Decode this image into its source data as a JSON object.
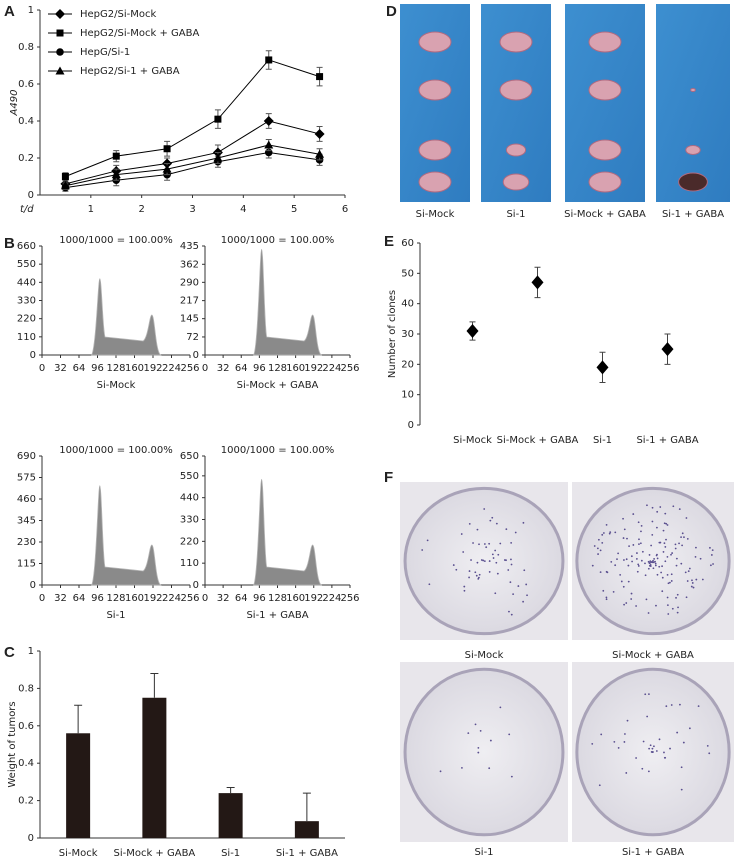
{
  "chart_data": [
    {
      "type": "line",
      "panel": "A",
      "ylabel": "A490",
      "xlabel": "t/d",
      "x": [
        0.5,
        1.5,
        2.5,
        3.5,
        4.5,
        5.5
      ],
      "xlim": [
        0,
        6
      ],
      "xticks": [
        1,
        2,
        3,
        4,
        5,
        6
      ],
      "ylim": [
        0,
        1
      ],
      "yticks": [
        0,
        0.2,
        0.4,
        0.6,
        0.8,
        1
      ],
      "series": [
        {
          "name": "HepG2/Si-Mock",
          "marker": "diamond",
          "color": "#000000",
          "values": [
            0.06,
            0.13,
            0.17,
            0.23,
            0.4,
            0.33
          ],
          "errors": [
            0.02,
            0.03,
            0.03,
            0.04,
            0.04,
            0.04
          ]
        },
        {
          "name": "HepG2/Si-Mock + GABA",
          "marker": "square",
          "color": "#000000",
          "values": [
            0.1,
            0.21,
            0.25,
            0.41,
            0.73,
            0.64
          ],
          "errors": [
            0.02,
            0.03,
            0.04,
            0.05,
            0.05,
            0.05
          ]
        },
        {
          "name": "HepG/Si-1",
          "marker": "circle",
          "color": "#000000",
          "values": [
            0.04,
            0.08,
            0.11,
            0.18,
            0.23,
            0.19
          ],
          "errors": [
            0.02,
            0.03,
            0.03,
            0.03,
            0.03,
            0.03
          ]
        },
        {
          "name": "HepG2/Si-1 + GABA",
          "marker": "triangle",
          "color": "#000000",
          "values": [
            0.05,
            0.11,
            0.14,
            0.2,
            0.27,
            0.22
          ],
          "errors": [
            0.02,
            0.03,
            0.03,
            0.03,
            0.03,
            0.03
          ]
        }
      ]
    },
    {
      "type": "bar",
      "panel": "C",
      "ylabel": "Weight of tumors",
      "color": "#231815",
      "categories": [
        "Si-Mock",
        "Si-Mock + GABA",
        "Si-1",
        "Si-1 + GABA"
      ],
      "values": [
        0.56,
        0.75,
        0.24,
        0.09
      ],
      "errors": [
        0.15,
        0.13,
        0.03,
        0.15
      ],
      "ylim": [
        0,
        1
      ],
      "yticks": [
        0,
        0.2,
        0.4,
        0.6,
        0.8,
        1
      ]
    },
    {
      "type": "dot",
      "panel": "E",
      "ylabel": "Number of clones",
      "color": "#000000",
      "categories": [
        "Si-Mock",
        "Si-Mock + GABA",
        "Si-1",
        "Si-1 + GABA"
      ],
      "values": [
        31,
        47,
        19,
        25
      ],
      "errors": [
        3,
        5,
        5,
        5
      ],
      "ylim": [
        0,
        60
      ],
      "yticks": [
        0,
        10,
        20,
        30,
        40,
        50,
        60
      ]
    }
  ],
  "flow": {
    "panel": "B",
    "panels": [
      {
        "header": "1000/1000 = 100.00%",
        "caption": "Si-Mock",
        "ylim": [
          0,
          660
        ],
        "yticks": [
          0,
          110,
          220,
          330,
          440,
          550,
          660
        ],
        "xlim": [
          0,
          256
        ],
        "xticks": [
          0,
          32,
          64,
          96,
          128,
          160,
          192,
          224,
          256
        ]
      },
      {
        "header": "1000/1000 = 100.00%",
        "caption": "Si-Mock + GABA",
        "ylim": [
          0,
          435
        ],
        "yticks": [
          0,
          72,
          145,
          217,
          290,
          362,
          435
        ],
        "xlim": [
          0,
          256
        ],
        "xticks": [
          0,
          32,
          64,
          96,
          128,
          160,
          192,
          224,
          256
        ]
      },
      {
        "header": "1000/1000 = 100.00%",
        "caption": "Si-1",
        "ylim": [
          0,
          690
        ],
        "yticks": [
          0,
          115,
          230,
          345,
          460,
          575,
          690
        ],
        "xlim": [
          0,
          256
        ],
        "xticks": [
          0,
          32,
          64,
          96,
          128,
          160,
          192,
          224,
          256
        ]
      },
      {
        "header": "1000/1000 = 100.00%",
        "caption": "Si-1 + GABA",
        "ylim": [
          0,
          650
        ],
        "yticks": [
          0,
          110,
          220,
          330,
          440,
          550,
          650
        ],
        "xlim": [
          0,
          256
        ],
        "xticks": [
          0,
          32,
          64,
          96,
          128,
          160,
          192,
          224,
          256
        ]
      }
    ]
  },
  "tumor_photos": {
    "panel": "D",
    "captions": [
      "Si-Mock",
      "Si-1",
      "Si-Mock + GABA",
      "Si-1 + GABA"
    ]
  },
  "colony_photos": {
    "panel": "F",
    "captions": [
      "Si-Mock",
      "Si-Mock + GABA",
      "Si-1",
      "Si-1 + GABA"
    ]
  }
}
